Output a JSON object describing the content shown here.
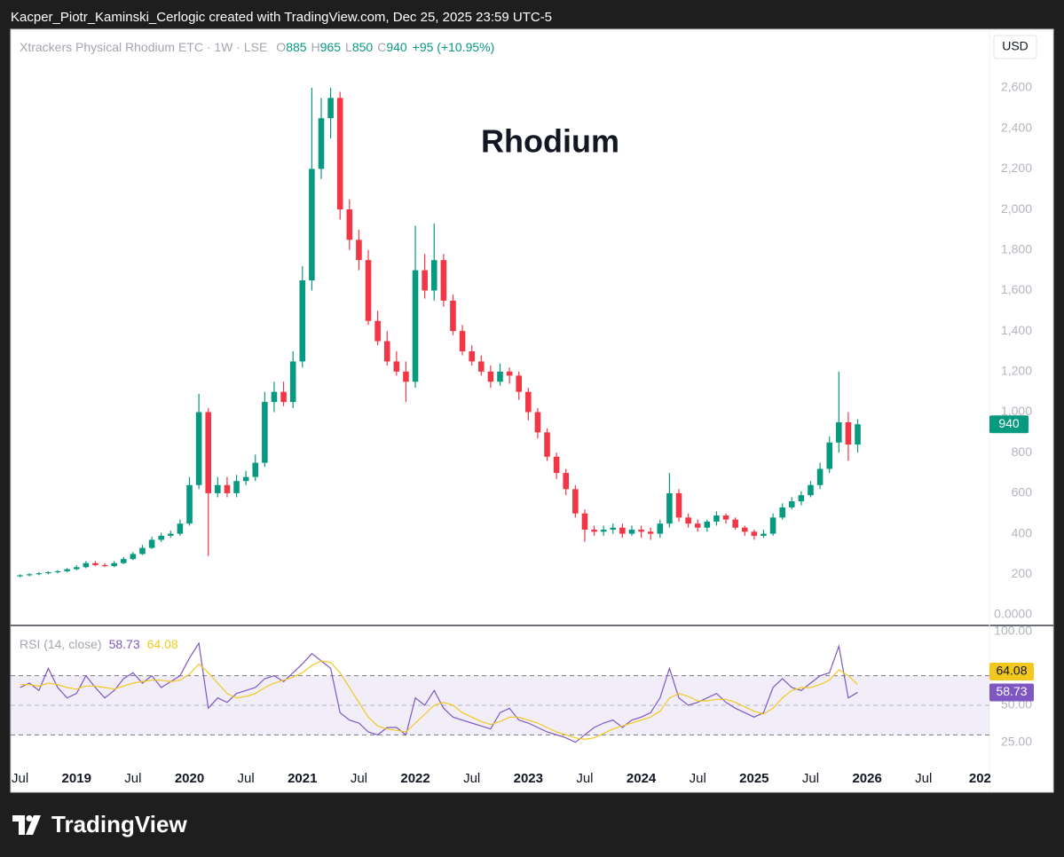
{
  "header": "Kacper_Piotr_Kaminski_Cerlogic created with TradingView.com, Dec 25, 2025 23:59 UTC-5",
  "footer": "TradingView",
  "currency": "USD",
  "chart_data": [
    {
      "type": "candlestick",
      "title": "Rhodium",
      "symbol": "Xtrackers Physical Rhodium ETC · 1W · LSE",
      "ohlc_labels": [
        "O",
        "H",
        "L",
        "C"
      ],
      "ohlc_last": [
        885,
        965,
        850,
        940
      ],
      "change": "+95 (+10.95%)",
      "up_color": "#089981",
      "down_color": "#f23645",
      "x": [
        "2018-07",
        "2018-08",
        "2018-09",
        "2018-10",
        "2018-11",
        "2018-12",
        "2019-01",
        "2019-02",
        "2019-03",
        "2019-04",
        "2019-05",
        "2019-06",
        "2019-07",
        "2019-08",
        "2019-09",
        "2019-10",
        "2019-11",
        "2019-12",
        "2020-01",
        "2020-02",
        "2020-03",
        "2020-04",
        "2020-05",
        "2020-06",
        "2020-07",
        "2020-08",
        "2020-09",
        "2020-10",
        "2020-11",
        "2020-12",
        "2021-01",
        "2021-02",
        "2021-03",
        "2021-04",
        "2021-05",
        "2021-06",
        "2021-07",
        "2021-08",
        "2021-09",
        "2021-10",
        "2021-11",
        "2021-12",
        "2022-01",
        "2022-02",
        "2022-03",
        "2022-04",
        "2022-05",
        "2022-06",
        "2022-07",
        "2022-08",
        "2022-09",
        "2022-10",
        "2022-11",
        "2022-12",
        "2023-01",
        "2023-02",
        "2023-03",
        "2023-04",
        "2023-05",
        "2023-06",
        "2023-07",
        "2023-08",
        "2023-09",
        "2023-10",
        "2023-11",
        "2023-12",
        "2024-01",
        "2024-02",
        "2024-03",
        "2024-04",
        "2024-05",
        "2024-06",
        "2024-07",
        "2024-08",
        "2024-09",
        "2024-10",
        "2024-11",
        "2024-12",
        "2025-01",
        "2025-02",
        "2025-03",
        "2025-04",
        "2025-05",
        "2025-06",
        "2025-07",
        "2025-08",
        "2025-09",
        "2025-10",
        "2025-11",
        "2025-12"
      ],
      "open": [
        190,
        195,
        200,
        205,
        210,
        215,
        225,
        235,
        255,
        245,
        240,
        255,
        275,
        300,
        330,
        370,
        390,
        400,
        450,
        640,
        1000,
        600,
        640,
        600,
        660,
        680,
        750,
        1050,
        1100,
        1050,
        1250,
        1650,
        2200,
        2450,
        2550,
        2000,
        1850,
        1750,
        1450,
        1350,
        1250,
        1200,
        1150,
        1700,
        1600,
        1750,
        1550,
        1400,
        1300,
        1250,
        1200,
        1150,
        1200,
        1180,
        1100,
        1000,
        900,
        780,
        700,
        620,
        500,
        420,
        410,
        420,
        430,
        400,
        420,
        410,
        400,
        450,
        600,
        480,
        450,
        430,
        460,
        490,
        470,
        430,
        410,
        390,
        400,
        480,
        530,
        560,
        590,
        640,
        720,
        850,
        950,
        840
      ],
      "high": [
        200,
        205,
        210,
        215,
        220,
        230,
        245,
        265,
        265,
        255,
        265,
        285,
        310,
        345,
        385,
        405,
        415,
        470,
        680,
        1090,
        1020,
        680,
        680,
        690,
        710,
        790,
        1100,
        1150,
        1150,
        1300,
        1720,
        2600,
        2550,
        2600,
        2580,
        2050,
        1900,
        1800,
        1500,
        1400,
        1300,
        1250,
        1920,
        1780,
        1930,
        1780,
        1580,
        1430,
        1330,
        1280,
        1230,
        1240,
        1220,
        1200,
        1120,
        1020,
        920,
        800,
        720,
        640,
        520,
        440,
        440,
        450,
        450,
        440,
        440,
        430,
        470,
        700,
        620,
        500,
        470,
        470,
        510,
        500,
        480,
        440,
        420,
        420,
        500,
        550,
        580,
        610,
        660,
        750,
        880,
        1200,
        1000,
        965
      ],
      "low": [
        185,
        190,
        195,
        200,
        205,
        210,
        220,
        230,
        240,
        235,
        235,
        250,
        270,
        295,
        325,
        360,
        380,
        390,
        440,
        620,
        290,
        580,
        580,
        580,
        640,
        660,
        730,
        1000,
        1030,
        1020,
        1220,
        1600,
        2150,
        2350,
        1950,
        1800,
        1700,
        1430,
        1330,
        1230,
        1180,
        1050,
        1120,
        1560,
        1550,
        1520,
        1380,
        1280,
        1230,
        1180,
        1120,
        1130,
        1140,
        1060,
        960,
        870,
        760,
        670,
        590,
        480,
        360,
        390,
        390,
        400,
        380,
        390,
        380,
        370,
        380,
        430,
        460,
        430,
        410,
        410,
        440,
        450,
        420,
        390,
        370,
        380,
        390,
        470,
        520,
        540,
        580,
        620,
        700,
        800,
        760,
        800
      ],
      "close": [
        195,
        200,
        205,
        210,
        215,
        225,
        235,
        255,
        245,
        240,
        255,
        275,
        300,
        330,
        370,
        390,
        400,
        450,
        640,
        1000,
        600,
        640,
        600,
        660,
        680,
        750,
        1050,
        1100,
        1050,
        1250,
        1650,
        2200,
        2450,
        2550,
        2000,
        1850,
        1750,
        1450,
        1350,
        1250,
        1200,
        1150,
        1700,
        1600,
        1750,
        1550,
        1400,
        1300,
        1250,
        1200,
        1150,
        1200,
        1180,
        1100,
        1000,
        900,
        780,
        700,
        620,
        500,
        420,
        410,
        420,
        430,
        400,
        420,
        410,
        400,
        450,
        600,
        480,
        450,
        430,
        460,
        490,
        470,
        430,
        410,
        390,
        400,
        480,
        530,
        560,
        590,
        640,
        720,
        850,
        950,
        840,
        940
      ],
      "xlim": [
        "2018-06",
        "2027-02"
      ],
      "xticks": [
        {
          "value": "2018-07",
          "label": "Jul"
        },
        {
          "value": "2019-01",
          "label": "2019"
        },
        {
          "value": "2019-07",
          "label": "Jul"
        },
        {
          "value": "2020-01",
          "label": "2020"
        },
        {
          "value": "2020-07",
          "label": "Jul"
        },
        {
          "value": "2021-01",
          "label": "2021"
        },
        {
          "value": "2021-07",
          "label": "Jul"
        },
        {
          "value": "2022-01",
          "label": "2022"
        },
        {
          "value": "2022-07",
          "label": "Jul"
        },
        {
          "value": "2023-01",
          "label": "2023"
        },
        {
          "value": "2023-07",
          "label": "Jul"
        },
        {
          "value": "2024-01",
          "label": "2024"
        },
        {
          "value": "2024-07",
          "label": "Jul"
        },
        {
          "value": "2025-01",
          "label": "2025"
        },
        {
          "value": "2025-07",
          "label": "Jul"
        },
        {
          "value": "2026-01",
          "label": "2026"
        },
        {
          "value": "2026-07",
          "label": "Jul"
        },
        {
          "value": "2027-01",
          "label": "202"
        }
      ],
      "ylim": [
        0,
        2880
      ],
      "yticks": [
        {
          "value": 0,
          "label": "0.0000"
        },
        200,
        400,
        600,
        800,
        {
          "value": 1000,
          "label": "1,000"
        },
        {
          "value": 1200,
          "label": "1,200"
        },
        {
          "value": 1400,
          "label": "1,400"
        },
        {
          "value": 1600,
          "label": "1,600"
        },
        {
          "value": 1800,
          "label": "1,800"
        },
        {
          "value": 2000,
          "label": "2,000"
        },
        {
          "value": 2200,
          "label": "2,200"
        },
        {
          "value": 2400,
          "label": "2,400"
        },
        {
          "value": 2600,
          "label": "2,600"
        }
      ],
      "grid": false
    },
    {
      "type": "line",
      "title": "RSI (14, close)",
      "series": [
        {
          "color": "#7e57c2",
          "values": [
            62,
            65,
            60,
            75,
            62,
            55,
            58,
            70,
            62,
            55,
            60,
            68,
            72,
            65,
            70,
            62,
            66,
            70,
            82,
            92,
            48,
            55,
            52,
            58,
            60,
            62,
            68,
            70,
            66,
            72,
            78,
            85,
            80,
            75,
            45,
            40,
            38,
            32,
            30,
            35,
            35,
            30,
            55,
            50,
            60,
            48,
            42,
            40,
            38,
            36,
            34,
            45,
            48,
            40,
            38,
            35,
            32,
            30,
            28,
            25,
            30,
            35,
            38,
            40,
            35,
            40,
            42,
            45,
            55,
            75,
            55,
            50,
            52,
            55,
            58,
            52,
            48,
            45,
            42,
            45,
            62,
            68,
            62,
            60,
            65,
            70,
            72,
            90,
            55,
            58.73
          ]
        },
        {
          "color": "#f2c81f",
          "values": [
            64,
            64,
            63,
            65,
            64,
            62,
            61,
            63,
            63,
            62,
            61,
            63,
            65,
            66,
            67,
            67,
            66,
            67,
            71,
            78,
            72,
            65,
            58,
            55,
            56,
            58,
            62,
            65,
            67,
            69,
            72,
            77,
            80,
            79,
            72,
            62,
            52,
            42,
            36,
            34,
            33,
            32,
            38,
            44,
            50,
            52,
            50,
            45,
            42,
            39,
            37,
            39,
            42,
            42,
            40,
            38,
            35,
            32,
            30,
            28,
            27,
            28,
            31,
            34,
            36,
            38,
            40,
            42,
            46,
            55,
            58,
            56,
            53,
            53,
            54,
            54,
            52,
            49,
            46,
            44,
            48,
            55,
            60,
            62,
            62,
            64,
            67,
            74,
            70,
            64.08
          ]
        }
      ],
      "ylim": [
        14,
        104
      ],
      "yticks": [
        {
          "value": 100,
          "label": "100.00"
        },
        {
          "value": 75,
          "label": "75.00"
        },
        {
          "value": 50,
          "label": "50.00"
        },
        {
          "value": 25,
          "label": "25.00"
        }
      ],
      "bands": [
        30,
        70
      ],
      "midline": 50,
      "band_color": "#7e57c2"
    }
  ]
}
